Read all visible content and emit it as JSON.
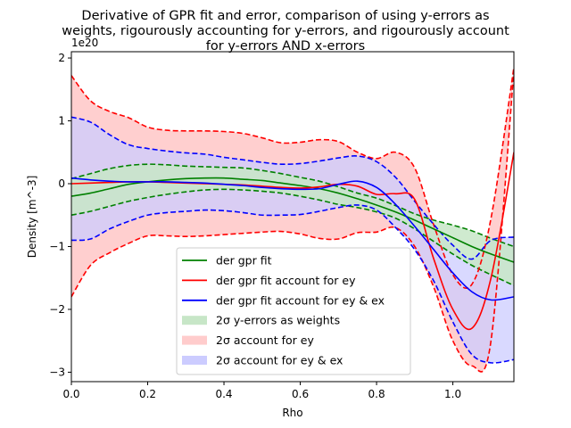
{
  "chart_data": {
    "type": "line",
    "title_lines": [
      "Derivative of GPR fit and error, comparison of using y-errors as",
      "weights, rigourously accounting for y-errors, and rigourously account",
      "for y-errors AND x-errors"
    ],
    "xlabel": "Rho",
    "ylabel": "Density [m^-3]",
    "y_offset_label": "1e20",
    "xlim": [
      0.0,
      1.16
    ],
    "ylim": [
      -3.15,
      2.1
    ],
    "y_scale": 1e+20,
    "xticks": [
      0.0,
      0.2,
      0.4,
      0.6,
      0.8,
      1.0
    ],
    "xtick_labels": [
      "0.0",
      "0.2",
      "0.4",
      "0.6",
      "0.8",
      "1.0"
    ],
    "yticks": [
      -3,
      -2,
      -1,
      0,
      1,
      2
    ],
    "ytick_labels": [
      "−3",
      "−2",
      "−1",
      "0",
      "1",
      "2"
    ],
    "grid": false,
    "legend_position": "lower-center",
    "colors": {
      "green": "#008000",
      "red": "#ff0000",
      "blue": "#0000ff",
      "green_fill": "#c7e6c7",
      "red_fill": "#ffcccc",
      "blue_fill": "#ccccff",
      "overlap_fill": "#c8a4d9"
    },
    "x": [
      0.0,
      0.05,
      0.1,
      0.15,
      0.2,
      0.25,
      0.3,
      0.35,
      0.4,
      0.45,
      0.5,
      0.55,
      0.6,
      0.65,
      0.7,
      0.75,
      0.8,
      0.85,
      0.9,
      0.95,
      1.0,
      1.05,
      1.1,
      1.16
    ],
    "series": [
      {
        "name": "der gpr fit",
        "color": "#008000",
        "values": [
          -0.2,
          -0.15,
          -0.08,
          -0.01,
          0.03,
          0.06,
          0.08,
          0.09,
          0.09,
          0.07,
          0.05,
          0.01,
          -0.03,
          -0.08,
          -0.15,
          -0.24,
          -0.34,
          -0.45,
          -0.58,
          -0.72,
          -0.86,
          -1.0,
          -1.12,
          -1.25
        ],
        "band_lower": [
          -0.5,
          -0.44,
          -0.36,
          -0.28,
          -0.22,
          -0.17,
          -0.13,
          -0.1,
          -0.09,
          -0.1,
          -0.12,
          -0.15,
          -0.2,
          -0.26,
          -0.33,
          -0.38,
          -0.45,
          -0.55,
          -0.72,
          -0.92,
          -1.12,
          -1.3,
          -1.45,
          -1.62
        ],
        "band_upper": [
          0.08,
          0.16,
          0.24,
          0.29,
          0.31,
          0.3,
          0.28,
          0.27,
          0.26,
          0.25,
          0.21,
          0.16,
          0.1,
          0.04,
          -0.05,
          -0.15,
          -0.23,
          -0.35,
          -0.48,
          -0.58,
          -0.66,
          -0.75,
          -0.87,
          -1.0
        ]
      },
      {
        "name": "der gpr fit account for ey",
        "color": "#ff0000",
        "values": [
          0.0,
          0.01,
          0.02,
          0.03,
          0.03,
          0.02,
          0.01,
          0.0,
          -0.01,
          -0.02,
          -0.04,
          -0.06,
          -0.07,
          -0.05,
          -0.01,
          -0.04,
          -0.17,
          -0.16,
          -0.25,
          -1.2,
          -2.0,
          -2.3,
          -1.5,
          0.5
        ],
        "band_lower": [
          -1.8,
          -1.3,
          -1.1,
          -0.95,
          -0.83,
          -0.83,
          -0.84,
          -0.83,
          -0.81,
          -0.79,
          -0.77,
          -0.76,
          -0.8,
          -0.87,
          -0.88,
          -0.78,
          -0.77,
          -0.7,
          -1.0,
          -1.65,
          -2.5,
          -2.9,
          -2.5,
          1.8
        ],
        "band_upper": [
          1.72,
          1.32,
          1.15,
          1.05,
          0.9,
          0.85,
          0.84,
          0.84,
          0.83,
          0.8,
          0.73,
          0.65,
          0.66,
          0.7,
          0.67,
          0.5,
          0.4,
          0.5,
          0.25,
          -0.66,
          -1.45,
          -1.6,
          -0.55,
          1.85
        ]
      },
      {
        "name": "der gpr fit account for ey & ex",
        "color": "#0000ff",
        "values": [
          0.09,
          0.06,
          0.04,
          0.03,
          0.03,
          0.03,
          0.02,
          0.01,
          -0.01,
          -0.03,
          -0.06,
          -0.08,
          -0.09,
          -0.08,
          -0.01,
          0.04,
          -0.06,
          -0.33,
          -0.68,
          -1.05,
          -1.42,
          -1.72,
          -1.85,
          -1.8
        ],
        "band_lower": [
          -0.9,
          -0.88,
          -0.72,
          -0.6,
          -0.5,
          -0.46,
          -0.44,
          -0.42,
          -0.43,
          -0.46,
          -0.5,
          -0.5,
          -0.49,
          -0.44,
          -0.38,
          -0.34,
          -0.42,
          -0.7,
          -1.05,
          -1.55,
          -2.2,
          -2.72,
          -2.85,
          -2.8
        ],
        "band_upper": [
          1.06,
          0.98,
          0.78,
          0.62,
          0.56,
          0.52,
          0.49,
          0.47,
          0.42,
          0.38,
          0.34,
          0.31,
          0.32,
          0.36,
          0.41,
          0.44,
          0.35,
          0.1,
          -0.28,
          -0.65,
          -0.98,
          -1.2,
          -0.9,
          -0.85
        ]
      }
    ],
    "legend": [
      {
        "label": "der gpr fit",
        "kind": "line",
        "color": "#008000"
      },
      {
        "label": "der gpr fit account for ey",
        "kind": "line",
        "color": "#ff0000"
      },
      {
        "label": "der gpr fit account for ey & ex",
        "kind": "line",
        "color": "#0000ff"
      },
      {
        "label": "2σ y-errors as weights",
        "kind": "patch",
        "color": "#c7e6c7"
      },
      {
        "label": "2σ account for ey",
        "kind": "patch",
        "color": "#ffcccc"
      },
      {
        "label": "2σ account for ey & ex",
        "kind": "patch",
        "color": "#ccccff"
      }
    ]
  }
}
